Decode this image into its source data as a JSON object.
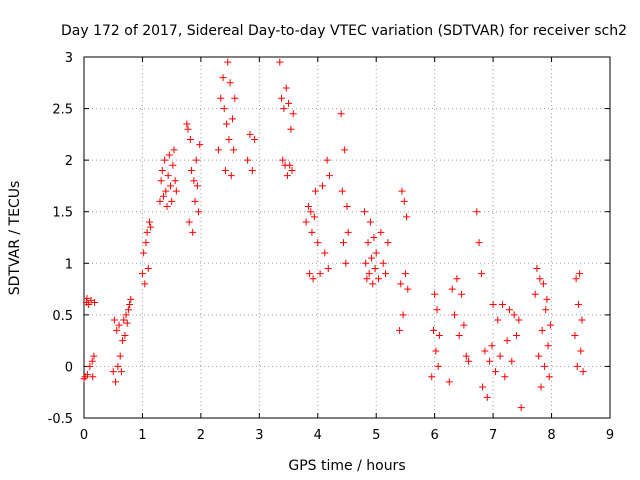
{
  "chart_data": {
    "type": "scatter",
    "title": "Day 172 of 2017, Sidereal Day-to-day VTEC variation (SDTVAR) for receiver sch2",
    "xlabel": "GPS time / hours",
    "ylabel": "SDTVAR / TECUs",
    "xlim": [
      0,
      9
    ],
    "ylim": [
      -0.5,
      3
    ],
    "xticks": [
      "0",
      "1",
      "2",
      "3",
      "4",
      "5",
      "6",
      "7",
      "8",
      "9"
    ],
    "yticks": [
      "-0.5",
      "0",
      "0.5",
      "1",
      "1.5",
      "2",
      "2.5",
      "3"
    ],
    "grid": true,
    "marker": "+",
    "color": "#ff0000",
    "series": [
      {
        "name": "SDTVAR",
        "points": [
          [
            0.0,
            -0.12
          ],
          [
            0.02,
            -0.1
          ],
          [
            0.04,
            0.62
          ],
          [
            0.05,
            0.66
          ],
          [
            0.06,
            -0.08
          ],
          [
            0.08,
            0.6
          ],
          [
            0.1,
            0.0
          ],
          [
            0.12,
            0.64
          ],
          [
            0.14,
            0.05
          ],
          [
            0.15,
            -0.1
          ],
          [
            0.17,
            0.1
          ],
          [
            0.18,
            0.62
          ],
          [
            0.5,
            -0.05
          ],
          [
            0.52,
            0.45
          ],
          [
            0.54,
            -0.15
          ],
          [
            0.56,
            0.35
          ],
          [
            0.58,
            0.0
          ],
          [
            0.6,
            0.4
          ],
          [
            0.62,
            0.1
          ],
          [
            0.64,
            -0.05
          ],
          [
            0.66,
            0.25
          ],
          [
            0.68,
            0.45
          ],
          [
            0.7,
            0.3
          ],
          [
            0.72,
            0.5
          ],
          [
            0.74,
            0.42
          ],
          [
            0.76,
            0.55
          ],
          [
            0.78,
            0.6
          ],
          [
            0.8,
            0.65
          ],
          [
            1.0,
            0.9
          ],
          [
            1.02,
            1.1
          ],
          [
            1.04,
            0.8
          ],
          [
            1.06,
            1.2
          ],
          [
            1.08,
            1.3
          ],
          [
            1.1,
            0.95
          ],
          [
            1.12,
            1.4
          ],
          [
            1.14,
            1.35
          ],
          [
            1.3,
            1.6
          ],
          [
            1.32,
            1.8
          ],
          [
            1.34,
            1.9
          ],
          [
            1.36,
            1.65
          ],
          [
            1.38,
            2.0
          ],
          [
            1.4,
            1.7
          ],
          [
            1.42,
            1.55
          ],
          [
            1.44,
            1.85
          ],
          [
            1.46,
            2.05
          ],
          [
            1.48,
            1.75
          ],
          [
            1.5,
            1.6
          ],
          [
            1.52,
            1.95
          ],
          [
            1.54,
            2.1
          ],
          [
            1.56,
            1.8
          ],
          [
            1.58,
            1.7
          ],
          [
            1.76,
            2.35
          ],
          [
            1.78,
            2.3
          ],
          [
            1.8,
            1.4
          ],
          [
            1.82,
            2.2
          ],
          [
            1.84,
            1.9
          ],
          [
            1.86,
            1.3
          ],
          [
            1.88,
            1.8
          ],
          [
            1.9,
            1.6
          ],
          [
            1.92,
            2.0
          ],
          [
            1.94,
            1.75
          ],
          [
            1.96,
            1.5
          ],
          [
            1.98,
            2.15
          ],
          [
            2.3,
            2.1
          ],
          [
            2.34,
            2.6
          ],
          [
            2.38,
            2.8
          ],
          [
            2.4,
            2.5
          ],
          [
            2.42,
            1.9
          ],
          [
            2.44,
            2.35
          ],
          [
            2.46,
            2.95
          ],
          [
            2.48,
            2.2
          ],
          [
            2.5,
            2.75
          ],
          [
            2.52,
            1.85
          ],
          [
            2.54,
            2.4
          ],
          [
            2.56,
            2.1
          ],
          [
            2.58,
            2.6
          ],
          [
            2.8,
            2.0
          ],
          [
            2.84,
            2.25
          ],
          [
            2.88,
            1.9
          ],
          [
            2.92,
            2.2
          ],
          [
            3.35,
            2.95
          ],
          [
            3.38,
            2.6
          ],
          [
            3.4,
            2.0
          ],
          [
            3.42,
            2.5
          ],
          [
            3.44,
            1.95
          ],
          [
            3.46,
            2.7
          ],
          [
            3.48,
            1.85
          ],
          [
            3.5,
            2.55
          ],
          [
            3.52,
            1.95
          ],
          [
            3.54,
            2.3
          ],
          [
            3.56,
            1.9
          ],
          [
            3.58,
            2.45
          ],
          [
            3.8,
            1.4
          ],
          [
            3.84,
            1.55
          ],
          [
            3.86,
            0.9
          ],
          [
            3.88,
            1.5
          ],
          [
            3.9,
            1.3
          ],
          [
            3.92,
            0.85
          ],
          [
            3.94,
            1.45
          ],
          [
            3.96,
            1.7
          ],
          [
            4.0,
            1.2
          ],
          [
            4.04,
            0.9
          ],
          [
            4.08,
            1.75
          ],
          [
            4.12,
            1.1
          ],
          [
            4.16,
            2.0
          ],
          [
            4.18,
            0.95
          ],
          [
            4.2,
            1.85
          ],
          [
            4.4,
            2.45
          ],
          [
            4.42,
            1.7
          ],
          [
            4.44,
            1.2
          ],
          [
            4.46,
            2.1
          ],
          [
            4.48,
            1.0
          ],
          [
            4.5,
            1.55
          ],
          [
            4.52,
            1.3
          ],
          [
            4.8,
            1.5
          ],
          [
            4.82,
            1.0
          ],
          [
            4.84,
            0.85
          ],
          [
            4.86,
            1.2
          ],
          [
            4.88,
            0.9
          ],
          [
            4.9,
            1.4
          ],
          [
            4.92,
            1.05
          ],
          [
            4.94,
            0.8
          ],
          [
            4.96,
            1.25
          ],
          [
            4.98,
            0.95
          ],
          [
            5.0,
            1.1
          ],
          [
            5.04,
            0.85
          ],
          [
            5.08,
            1.3
          ],
          [
            5.12,
            1.0
          ],
          [
            5.16,
            0.9
          ],
          [
            5.2,
            1.2
          ],
          [
            5.4,
            0.35
          ],
          [
            5.42,
            0.8
          ],
          [
            5.44,
            1.7
          ],
          [
            5.46,
            0.5
          ],
          [
            5.48,
            1.6
          ],
          [
            5.5,
            0.9
          ],
          [
            5.52,
            1.45
          ],
          [
            5.54,
            0.75
          ],
          [
            5.95,
            -0.1
          ],
          [
            5.98,
            0.35
          ],
          [
            6.0,
            0.7
          ],
          [
            6.02,
            0.15
          ],
          [
            6.04,
            0.55
          ],
          [
            6.06,
            0.0
          ],
          [
            6.08,
            0.3
          ],
          [
            6.25,
            -0.15
          ],
          [
            6.3,
            0.75
          ],
          [
            6.34,
            0.5
          ],
          [
            6.38,
            0.85
          ],
          [
            6.42,
            0.3
          ],
          [
            6.46,
            0.7
          ],
          [
            6.5,
            0.4
          ],
          [
            6.54,
            0.1
          ],
          [
            6.58,
            0.05
          ],
          [
            6.72,
            1.5
          ],
          [
            6.76,
            1.2
          ],
          [
            6.8,
            0.9
          ],
          [
            6.82,
            -0.2
          ],
          [
            6.86,
            0.15
          ],
          [
            6.9,
            -0.3
          ],
          [
            6.94,
            0.05
          ],
          [
            6.98,
            0.2
          ],
          [
            7.0,
            0.6
          ],
          [
            7.04,
            -0.05
          ],
          [
            7.08,
            0.45
          ],
          [
            7.12,
            0.1
          ],
          [
            7.16,
            0.6
          ],
          [
            7.2,
            -0.1
          ],
          [
            7.24,
            0.25
          ],
          [
            7.28,
            0.55
          ],
          [
            7.32,
            0.05
          ],
          [
            7.36,
            0.5
          ],
          [
            7.4,
            0.3
          ],
          [
            7.44,
            0.45
          ],
          [
            7.48,
            -0.4
          ],
          [
            7.72,
            0.7
          ],
          [
            7.75,
            0.95
          ],
          [
            7.78,
            0.1
          ],
          [
            7.8,
            0.85
          ],
          [
            7.82,
            -0.2
          ],
          [
            7.84,
            0.35
          ],
          [
            7.86,
            0.8
          ],
          [
            7.88,
            0.0
          ],
          [
            7.9,
            0.55
          ],
          [
            7.92,
            0.65
          ],
          [
            7.94,
            0.2
          ],
          [
            7.96,
            -0.1
          ],
          [
            7.98,
            0.4
          ],
          [
            8.4,
            0.3
          ],
          [
            8.42,
            0.85
          ],
          [
            8.44,
            0.0
          ],
          [
            8.46,
            0.6
          ],
          [
            8.48,
            0.9
          ],
          [
            8.5,
            0.15
          ],
          [
            8.52,
            0.45
          ],
          [
            8.54,
            -0.05
          ]
        ]
      }
    ]
  }
}
